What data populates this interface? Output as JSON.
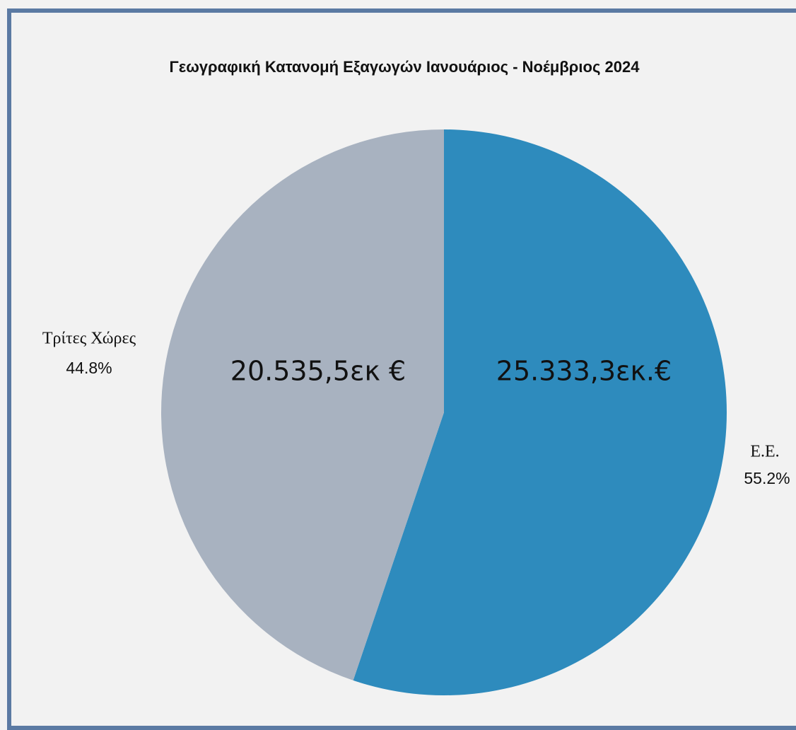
{
  "chart_data": {
    "type": "pie",
    "title": "Γεωγραφική Κατανομή Εξαγωγών Ιανουάριος - Νοέμβριος 2024",
    "categories": [
      "Ε.Ε.",
      "Τρίτες Χώρες"
    ],
    "values": [
      55.2,
      44.8
    ],
    "value_labels": [
      "55.2%",
      "44.8%"
    ],
    "amount_labels": [
      "25.333,3εκ.€",
      "20.535,5εκ €"
    ],
    "colors": [
      "#2e8bbd",
      "#a8b2c0"
    ]
  }
}
